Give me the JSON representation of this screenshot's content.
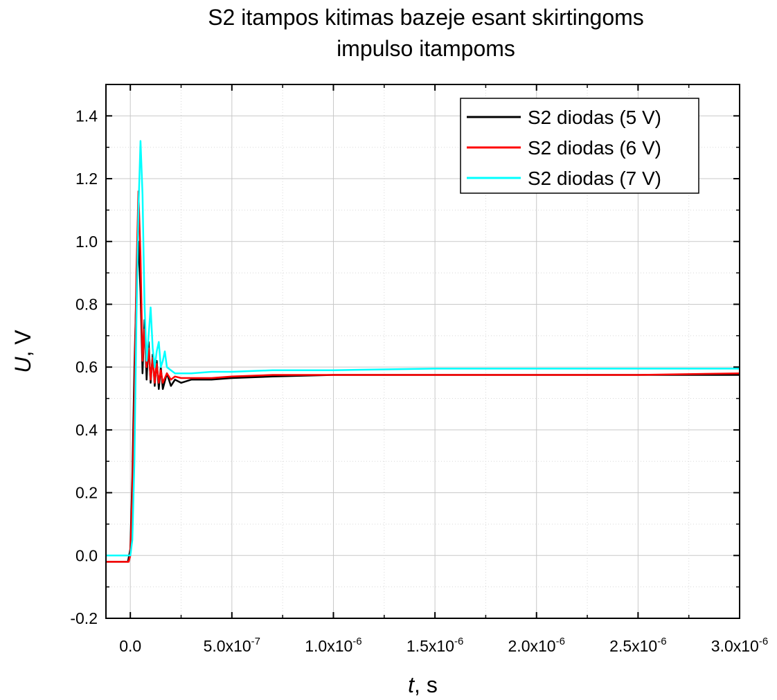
{
  "chart_data": {
    "type": "line",
    "title_line1": "S2 itampos kitimas bazeje esant skirtingoms",
    "title_line2": "impulso itampoms",
    "xlabel": {
      "var": "t",
      "unit": ", s"
    },
    "ylabel": {
      "var": "U",
      "unit": ", V"
    },
    "xlim": [
      -1.2e-07,
      3e-06
    ],
    "ylim": [
      -0.2,
      1.5
    ],
    "grid": true,
    "legend_position": "top-right",
    "x_ticks": [
      {
        "value": 0,
        "mantissa": "0.0",
        "exp": ""
      },
      {
        "value": 5e-07,
        "mantissa": "5.0x10",
        "exp": "-7"
      },
      {
        "value": 1e-06,
        "mantissa": "1.0x10",
        "exp": "-6"
      },
      {
        "value": 1.5e-06,
        "mantissa": "1.5x10",
        "exp": "-6"
      },
      {
        "value": 2e-06,
        "mantissa": "2.0x10",
        "exp": "-6"
      },
      {
        "value": 2.5e-06,
        "mantissa": "2.5x10",
        "exp": "-6"
      },
      {
        "value": 3e-06,
        "mantissa": "3.0x10",
        "exp": "-6"
      }
    ],
    "y_ticks": [
      {
        "value": -0.2,
        "label": "-0.2"
      },
      {
        "value": 0.0,
        "label": "0.0"
      },
      {
        "value": 0.2,
        "label": "0.2"
      },
      {
        "value": 0.4,
        "label": "0.4"
      },
      {
        "value": 0.6,
        "label": "0.6"
      },
      {
        "value": 0.8,
        "label": "0.8"
      },
      {
        "value": 1.0,
        "label": "1.0"
      },
      {
        "value": 1.2,
        "label": "1.2"
      },
      {
        "value": 1.4,
        "label": "1.4"
      }
    ],
    "series": [
      {
        "name": "S2 diodas (5 V)",
        "color": "#000000",
        "x": [
          -1.2e-07,
          -1.2e-08,
          0,
          1e-08,
          2e-08,
          3e-08,
          4e-08,
          5e-08,
          6e-08,
          7e-08,
          8e-08,
          9e-08,
          1e-07,
          1.1e-07,
          1.2e-07,
          1.3e-07,
          1.4e-07,
          1.5e-07,
          1.6e-07,
          1.8e-07,
          2e-07,
          2.2e-07,
          2.5e-07,
          3e-07,
          4e-07,
          5e-07,
          7e-07,
          1e-06,
          1.5e-06,
          2e-06,
          2.5e-06,
          3e-06
        ],
        "y": [
          -0.02,
          -0.02,
          0.02,
          0.25,
          0.6,
          0.85,
          1.0,
          0.84,
          0.58,
          0.75,
          0.56,
          0.68,
          0.55,
          0.64,
          0.54,
          0.62,
          0.53,
          0.6,
          0.53,
          0.58,
          0.54,
          0.56,
          0.55,
          0.56,
          0.56,
          0.565,
          0.57,
          0.575,
          0.575,
          0.575,
          0.575,
          0.575
        ]
      },
      {
        "name": "S2 diodas (6 V)",
        "color": "#ff0000",
        "x": [
          -1.2e-07,
          -8e-09,
          0,
          1e-08,
          2e-08,
          3e-08,
          4e-08,
          5e-08,
          6e-08,
          7e-08,
          8e-08,
          9e-08,
          1e-07,
          1.1e-07,
          1.2e-07,
          1.3e-07,
          1.4e-07,
          1.5e-07,
          1.6e-07,
          1.8e-07,
          2e-07,
          2.2e-07,
          2.5e-07,
          3e-07,
          4e-07,
          5e-07,
          7e-07,
          1e-06,
          1.5e-06,
          2e-06,
          2.5e-06,
          3e-06
        ],
        "y": [
          -0.02,
          -0.02,
          0.0,
          0.2,
          0.5,
          0.9,
          1.16,
          0.95,
          0.62,
          0.72,
          0.6,
          0.66,
          0.56,
          0.63,
          0.55,
          0.61,
          0.55,
          0.59,
          0.55,
          0.58,
          0.56,
          0.57,
          0.565,
          0.565,
          0.565,
          0.57,
          0.575,
          0.575,
          0.575,
          0.575,
          0.575,
          0.58
        ]
      },
      {
        "name": "S2 diodas (7 V)",
        "color": "#00ffff",
        "x": [
          -1.2e-07,
          0,
          1e-08,
          2e-08,
          3e-08,
          4e-08,
          5e-08,
          6e-08,
          7e-08,
          8e-08,
          9e-08,
          1e-07,
          1.1e-07,
          1.2e-07,
          1.3e-07,
          1.4e-07,
          1.5e-07,
          1.6e-07,
          1.7e-07,
          1.8e-07,
          2e-07,
          2.2e-07,
          2.5e-07,
          3e-07,
          4e-07,
          5e-07,
          7e-07,
          1e-06,
          1.5e-06,
          2e-06,
          2.5e-06,
          3e-06
        ],
        "y": [
          0.0,
          0.0,
          0.05,
          0.3,
          0.75,
          1.1,
          1.32,
          1.15,
          0.8,
          0.62,
          0.7,
          0.79,
          0.66,
          0.6,
          0.65,
          0.68,
          0.6,
          0.62,
          0.65,
          0.6,
          0.59,
          0.58,
          0.58,
          0.58,
          0.585,
          0.585,
          0.59,
          0.59,
          0.595,
          0.595,
          0.595,
          0.595
        ]
      }
    ]
  }
}
